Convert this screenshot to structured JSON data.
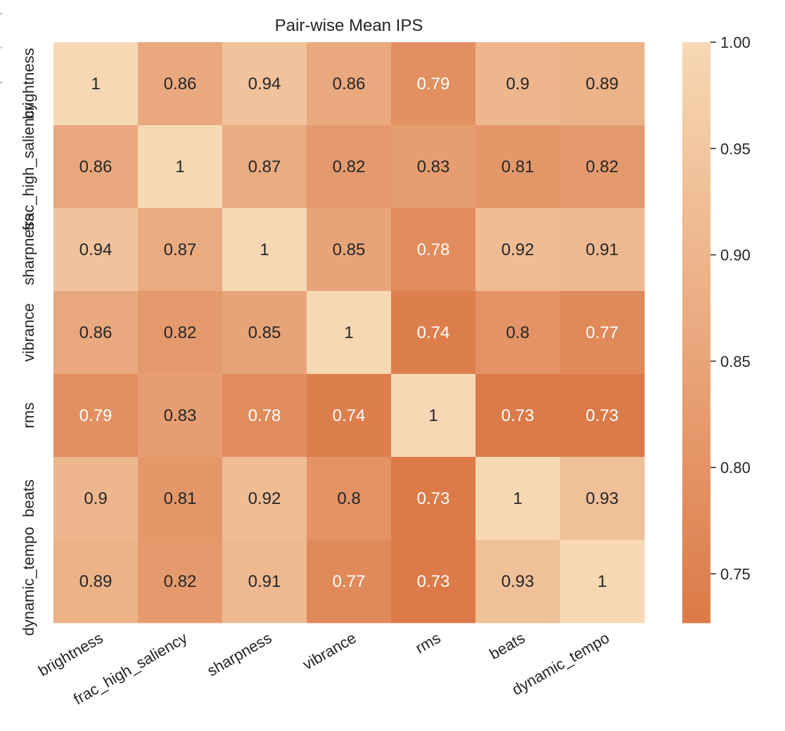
{
  "chart_data": {
    "type": "heatmap",
    "title": "Pair-wise Mean IPS",
    "row_labels": [
      "brightness",
      "frac_high_saliency",
      "sharpness",
      "vibrance",
      "rms",
      "beats",
      "dynamic_tempo"
    ],
    "col_labels": [
      "brightness",
      "frac_high_saliency",
      "sharpness",
      "vibrance",
      "rms",
      "beats",
      "dynamic_tempo"
    ],
    "values": [
      [
        1.0,
        0.86,
        0.94,
        0.86,
        0.79,
        0.9,
        0.89
      ],
      [
        0.86,
        1.0,
        0.87,
        0.82,
        0.83,
        0.81,
        0.82
      ],
      [
        0.94,
        0.87,
        1.0,
        0.85,
        0.78,
        0.92,
        0.91
      ],
      [
        0.86,
        0.82,
        0.85,
        1.0,
        0.74,
        0.8,
        0.77
      ],
      [
        0.79,
        0.83,
        0.78,
        0.74,
        1.0,
        0.73,
        0.73
      ],
      [
        0.9,
        0.81,
        0.92,
        0.8,
        0.73,
        1.0,
        0.93
      ],
      [
        0.89,
        0.82,
        0.91,
        0.77,
        0.73,
        0.93,
        1.0
      ]
    ],
    "annotations": [
      [
        "1",
        "0.86",
        "0.94",
        "0.86",
        "0.79",
        "0.9",
        "0.89"
      ],
      [
        "0.86",
        "1",
        "0.87",
        "0.82",
        "0.83",
        "0.81",
        "0.82"
      ],
      [
        "0.94",
        "0.87",
        "1",
        "0.85",
        "0.78",
        "0.92",
        "0.91"
      ],
      [
        "0.86",
        "0.82",
        "0.85",
        "1",
        "0.74",
        "0.8",
        "0.77"
      ],
      [
        "0.79",
        "0.83",
        "0.78",
        "0.74",
        "1",
        "0.73",
        "0.73"
      ],
      [
        "0.9",
        "0.81",
        "0.92",
        "0.8",
        "0.73",
        "1",
        "0.93"
      ],
      [
        "0.89",
        "0.82",
        "0.91",
        "0.77",
        "0.73",
        "0.93",
        "1"
      ]
    ],
    "colorbar": {
      "vmin": 0.727,
      "vmax": 1.0,
      "ticks": [
        0.75,
        0.8,
        0.85,
        0.9,
        0.95,
        1.0
      ],
      "tick_labels": [
        "0.75",
        "0.80",
        "0.85",
        "0.90",
        "0.95",
        "1.00"
      ]
    },
    "colors": {
      "low": "#dc7a48",
      "high": "#f7d8b4",
      "text_dark": "#262626",
      "text_light": "#ffffff"
    }
  }
}
